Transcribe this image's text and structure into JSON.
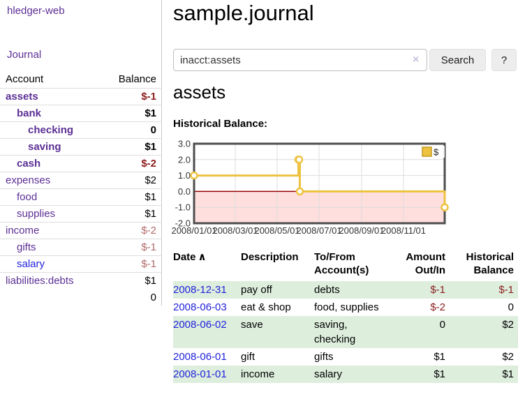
{
  "app": {
    "brand": "hledger-web",
    "nav_journal": "Journal"
  },
  "sidebar": {
    "headers": {
      "account": "Account",
      "balance": "Balance"
    },
    "rows": [
      {
        "account": "assets",
        "balance": "$-1",
        "indent": 0,
        "bold": true,
        "balance_class": "neg-strong"
      },
      {
        "account": "bank",
        "balance": "$1",
        "indent": 1,
        "bold": true,
        "balance_class": ""
      },
      {
        "account": "checking",
        "balance": "0",
        "indent": 2,
        "bold": true,
        "balance_class": ""
      },
      {
        "account": "saving",
        "balance": "$1",
        "indent": 2,
        "bold": true,
        "balance_class": ""
      },
      {
        "account": "cash",
        "balance": "$-2",
        "indent": 1,
        "bold": true,
        "balance_class": "neg-strong"
      },
      {
        "account": "expenses",
        "balance": "$2",
        "indent": 0,
        "bold": false,
        "balance_class": ""
      },
      {
        "account": "food",
        "balance": "$1",
        "indent": 1,
        "bold": false,
        "balance_class": ""
      },
      {
        "account": "supplies",
        "balance": "$1",
        "indent": 1,
        "bold": false,
        "balance_class": ""
      },
      {
        "account": "income",
        "balance": "$-2",
        "indent": 0,
        "bold": false,
        "balance_class": "neg-soft"
      },
      {
        "account": "gifts",
        "balance": "$-1",
        "indent": 1,
        "bold": false,
        "balance_class": "neg-soft"
      },
      {
        "account": "salary",
        "balance": "$-1",
        "indent": 1,
        "bold": false,
        "balance_class": "neg-soft",
        "link_class": "blue"
      },
      {
        "account": "liabilities:debts",
        "balance": "$1",
        "indent": 0,
        "bold": false,
        "balance_class": ""
      }
    ],
    "total": "0"
  },
  "main": {
    "title": "sample.journal",
    "search": {
      "value": "inacct:assets",
      "clear": "×",
      "search_button": "Search",
      "help_button": "?"
    },
    "account_heading": "assets",
    "chart_label": "Historical Balance:"
  },
  "chart_data": {
    "type": "line",
    "title": "Historical Balance:",
    "x_start": "2008/01/01",
    "x_end": "2008/12/31",
    "x_ticks": [
      "2008/01/01",
      "2008/03/01",
      "2008/05/01",
      "2008/07/01",
      "2008/09/01",
      "2008/11/01"
    ],
    "y_ticks": [
      3.0,
      2.0,
      1.0,
      0.0,
      -1.0,
      -2.0
    ],
    "ylim": [
      -2,
      3
    ],
    "series": [
      {
        "name": "$",
        "color": "#EDC240",
        "steps": true,
        "points": [
          [
            "2008/01/01",
            1
          ],
          [
            "2008/06/01",
            2
          ],
          [
            "2008/06/02",
            2
          ],
          [
            "2008/06/03",
            0
          ],
          [
            "2008/12/31",
            -1
          ]
        ]
      }
    ],
    "legend_position": "top-right",
    "grid": true,
    "negative_fill": "#ffdede",
    "zero_line_color": "#990000",
    "border_color": "#4d4d4d"
  },
  "register": {
    "headers": {
      "date": "Date",
      "description": "Description",
      "accounts": "To/From Account(s)",
      "amount": "Amount Out/In",
      "balance": "Historical Balance"
    },
    "sort_icon": "∧",
    "rows": [
      {
        "date": "2008-12-31",
        "description": "pay off",
        "accounts": "debts",
        "amount": "$-1",
        "amount_neg": true,
        "balance": "$-1",
        "balance_neg": true
      },
      {
        "date": "2008-06-03",
        "description": "eat & shop",
        "accounts": "food, supplies",
        "amount": "$-2",
        "amount_neg": true,
        "balance": "0",
        "balance_neg": false
      },
      {
        "date": "2008-06-02",
        "description": "save",
        "accounts": "saving,\nchecking",
        "amount": "0",
        "amount_neg": false,
        "balance": "$2",
        "balance_neg": false
      },
      {
        "date": "2008-06-01",
        "description": "gift",
        "accounts": "gifts",
        "amount": "$1",
        "amount_neg": false,
        "balance": "$2",
        "balance_neg": false
      },
      {
        "date": "2008-01-01",
        "description": "income",
        "accounts": "salary",
        "amount": "$1",
        "amount_neg": false,
        "balance": "$1",
        "balance_neg": false
      }
    ]
  }
}
